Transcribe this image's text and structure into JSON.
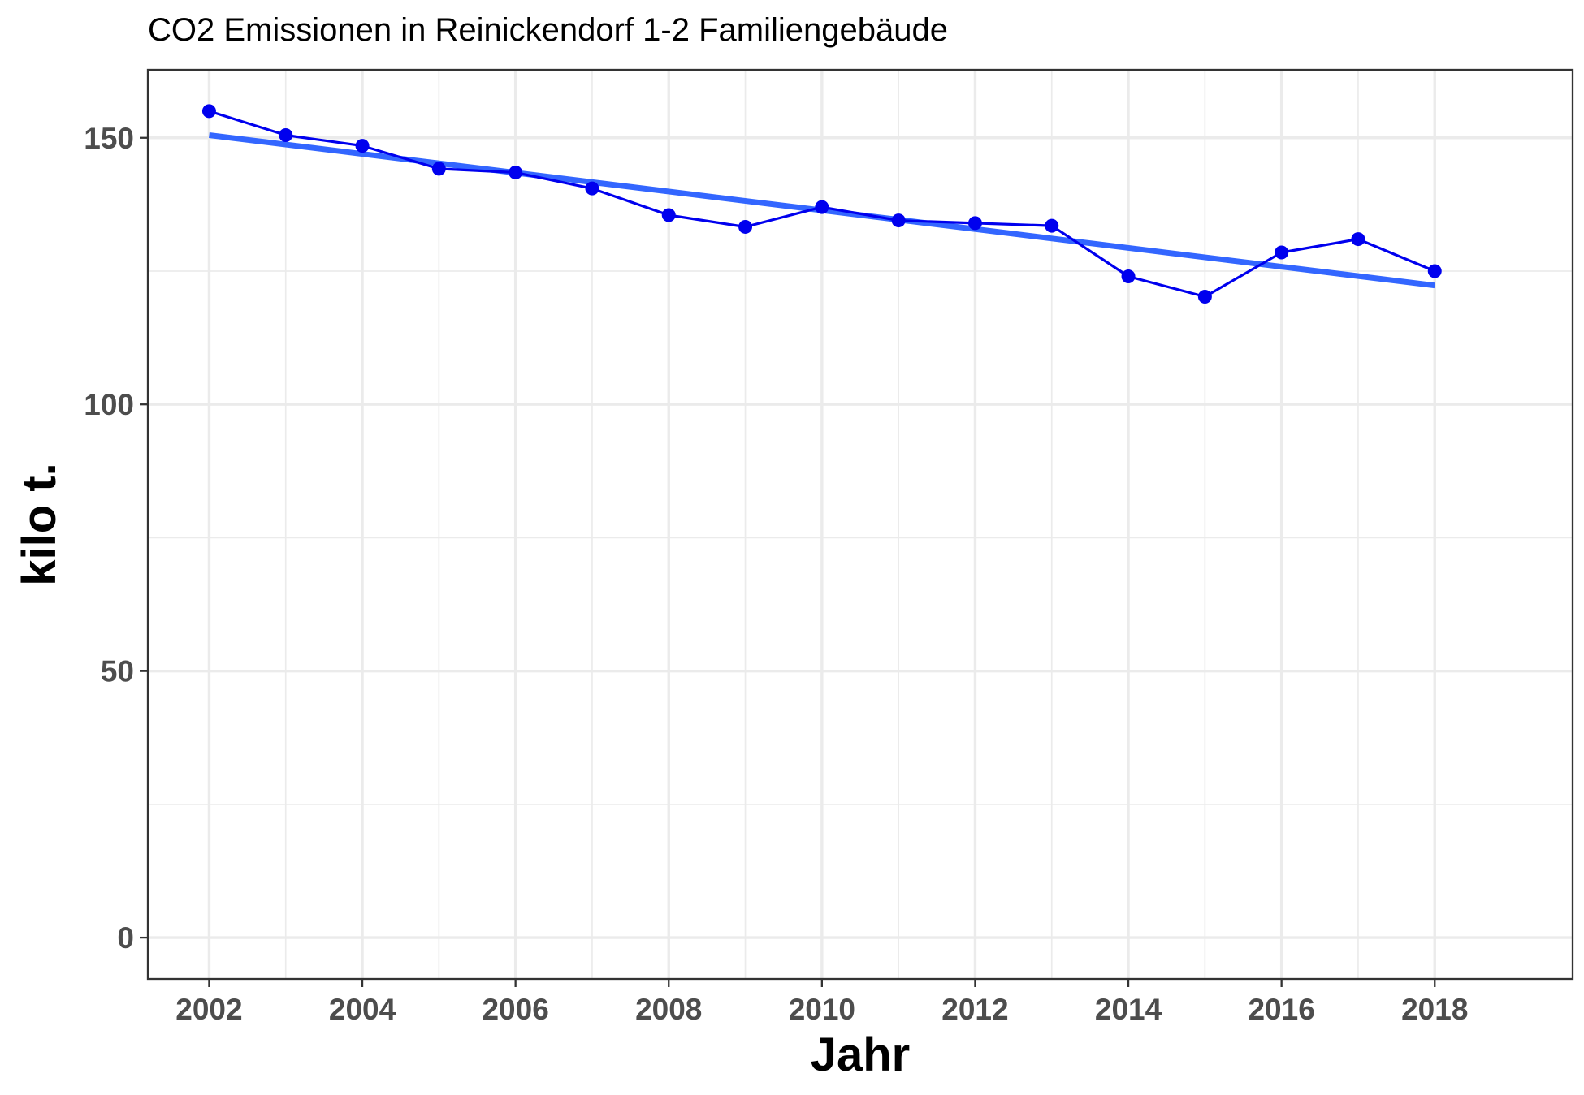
{
  "chart_data": {
    "type": "line",
    "title": "CO2 Emissionen in Reinickendorf 1-2 Familiengebäude",
    "xlabel": "Jahr",
    "ylabel": "kilo t.",
    "x": [
      2002,
      2003,
      2004,
      2005,
      2006,
      2007,
      2008,
      2009,
      2010,
      2011,
      2012,
      2013,
      2014,
      2015,
      2016,
      2017,
      2018
    ],
    "series": [
      {
        "values": [
          155.0,
          150.5,
          148.5,
          144.2,
          143.5,
          140.5,
          135.5,
          133.3,
          137.0,
          134.5,
          134.0,
          133.5,
          124.0,
          120.2,
          128.5,
          131.0,
          125.0
        ],
        "color": "#0000ee",
        "markers": true
      }
    ],
    "trend_line": {
      "x": [
        2002,
        2018
      ],
      "y": [
        150.5,
        122.3
      ],
      "color": "#3366ff"
    },
    "xticks": [
      "2002",
      "2004",
      "2006",
      "2008",
      "2010",
      "2012",
      "2014",
      "2016",
      "2018"
    ],
    "yticks": [
      "0",
      "50",
      "100",
      "150"
    ],
    "xlim": [
      2001.2,
      2019.8
    ],
    "ylim": [
      -7.75,
      162.75
    ],
    "grid": true,
    "legend": "none"
  }
}
